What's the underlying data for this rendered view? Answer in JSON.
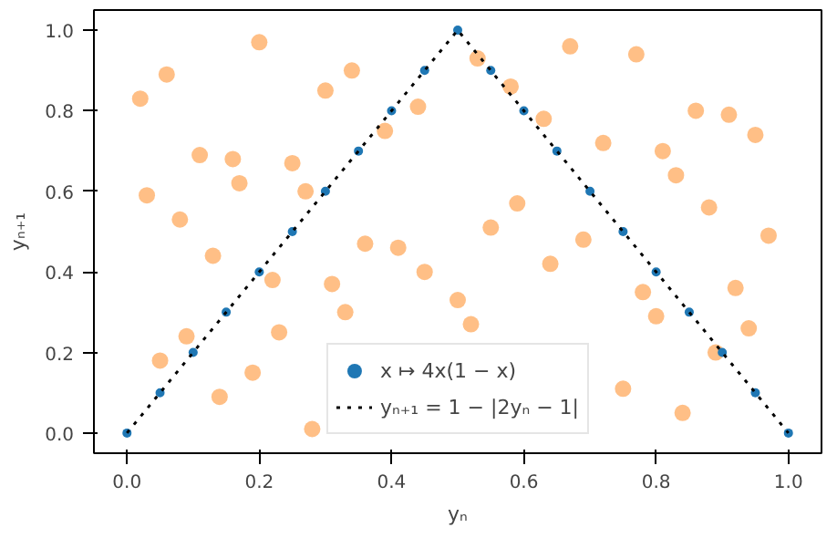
{
  "chart_data": {
    "type": "scatter",
    "xlabel": "yₙ",
    "ylabel": "yₙ₊₁",
    "xlim": [
      -0.05,
      1.05
    ],
    "ylim": [
      -0.05,
      1.05
    ],
    "xticks": [
      {
        "value": 0,
        "label": "0.0"
      },
      0.2,
      0.4,
      0.6,
      0.8,
      {
        "value": 1,
        "label": "1.0"
      }
    ],
    "yticks": [
      {
        "value": 0,
        "label": "0.0"
      },
      0.2,
      0.4,
      0.6,
      0.8,
      {
        "value": 1,
        "label": "1.0"
      }
    ],
    "legend": "bottom",
    "grid": false,
    "series": [
      {
        "marker": "circle",
        "color": "#ff7f0e",
        "x": [
          0.5,
          0.25,
          0.75,
          0.13,
          0.63,
          0.88,
          0.06,
          0.31,
          0.81,
          0.19,
          0.69,
          0.44,
          0.94,
          0.03,
          0.53,
          0.28,
          0.78,
          0.16,
          0.41,
          0.91,
          0.09,
          0.59,
          0.34,
          0.84,
          0.22,
          0.72,
          0.97,
          0.02,
          0.52,
          0.27,
          0.77,
          0.14,
          0.64,
          0.39,
          0.89,
          0.08,
          0.58,
          0.33,
          0.83,
          0.2,
          0.45,
          0.95,
          0.05,
          0.55,
          0.3,
          0.8,
          0.17,
          0.67,
          0.92,
          0.11,
          0.36,
          0.86,
          0.23
        ],
        "values": [
          0.33,
          0.67,
          0.11,
          0.44,
          0.78,
          0.56,
          0.89,
          0.37,
          0.7,
          0.15,
          0.48,
          0.81,
          0.26,
          0.59,
          0.93,
          0.01,
          0.35,
          0.68,
          0.46,
          0.79,
          0.24,
          0.57,
          0.9,
          0.05,
          0.38,
          0.72,
          0.49,
          0.83,
          0.27,
          0.6,
          0.94,
          0.09,
          0.42,
          0.75,
          0.2,
          0.53,
          0.86,
          0.3,
          0.64,
          0.97,
          0.4,
          0.74,
          0.18,
          0.51,
          0.85,
          0.29,
          0.62,
          0.96,
          0.36,
          0.69,
          0.47,
          0.8,
          0.25
        ]
      },
      {
        "marker": "circle",
        "name": "x ↦ 4x(1 − x)",
        "color": "#1f77b4",
        "x": [
          0.0,
          0.05,
          0.1,
          0.15,
          0.2,
          0.25,
          0.3,
          0.35,
          0.4,
          0.45,
          0.5,
          0.55,
          0.6,
          0.65,
          0.7,
          0.75,
          0.8,
          0.85,
          0.9,
          0.95,
          1.0
        ],
        "values": [
          0.0,
          0.1,
          0.2,
          0.3,
          0.4,
          0.5,
          0.6,
          0.7,
          0.8,
          0.9,
          1.0,
          0.9,
          0.8,
          0.7,
          0.6,
          0.5,
          0.4,
          0.3,
          0.2,
          0.1,
          0.0
        ]
      },
      {
        "type": "line",
        "line_style": "dotted",
        "name": "yₙ₊₁ = 1 − |2yₙ − 1|",
        "color": "#000000",
        "x": [
          0.0,
          0.5,
          1.0
        ],
        "values": [
          0.0,
          1.0,
          0.0
        ]
      }
    ]
  }
}
